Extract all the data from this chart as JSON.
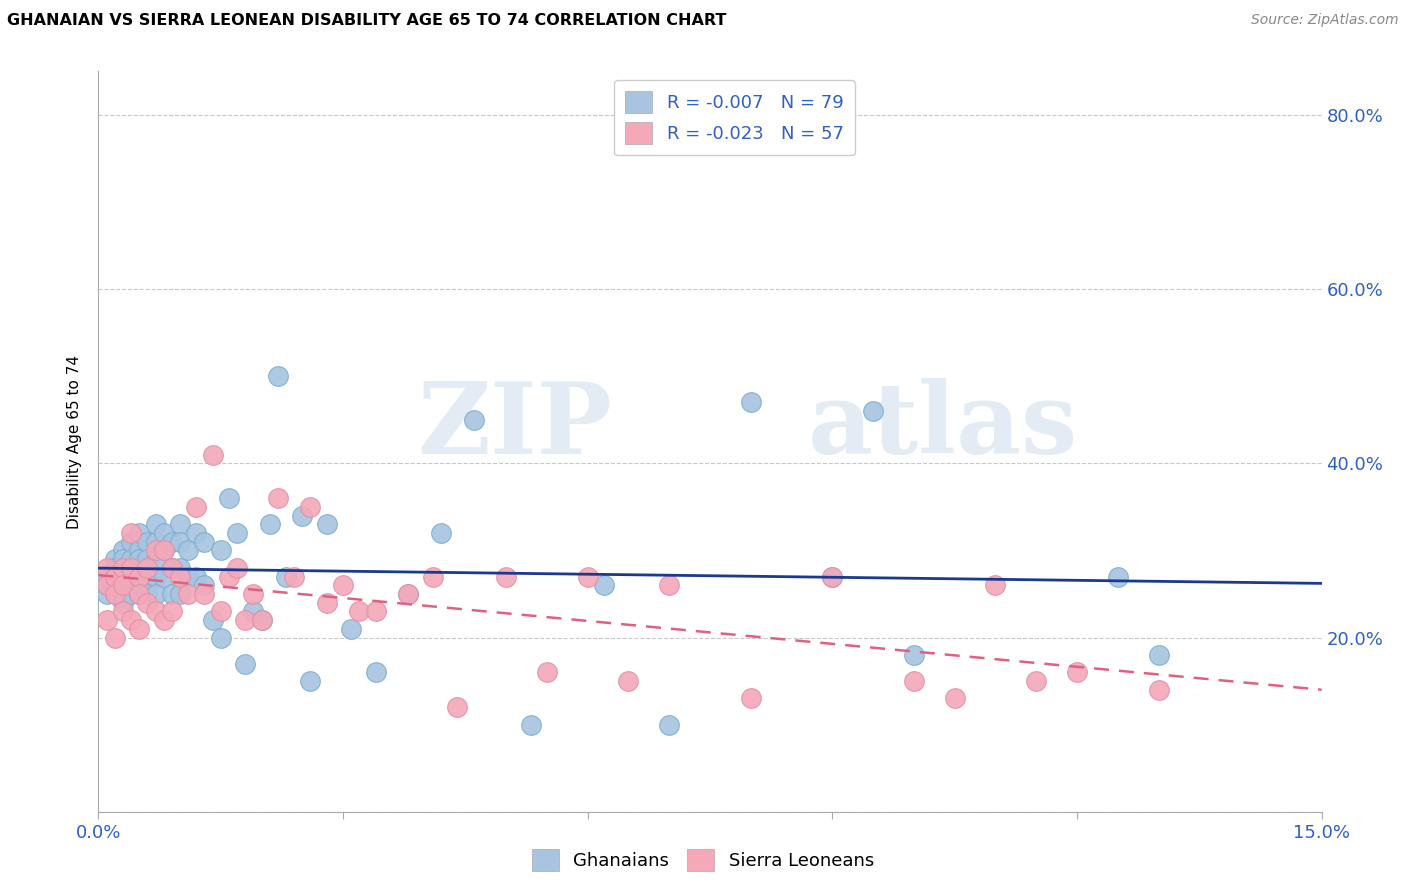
{
  "title": "GHANAIAN VS SIERRA LEONEAN DISABILITY AGE 65 TO 74 CORRELATION CHART",
  "source": "Source: ZipAtlas.com",
  "ylabel": "Disability Age 65 to 74",
  "x_min": 0.0,
  "x_max": 0.15,
  "y_min": 0.0,
  "y_max": 0.85,
  "x_ticks": [
    0.0,
    0.03,
    0.06,
    0.09,
    0.12,
    0.15
  ],
  "x_tick_labels": [
    "0.0%",
    "",
    "",
    "",
    "",
    "15.0%"
  ],
  "y_ticks": [
    0.0,
    0.2,
    0.4,
    0.6,
    0.8
  ],
  "y_tick_labels_right": [
    "",
    "20.0%",
    "40.0%",
    "60.0%",
    "80.0%"
  ],
  "ghanaian_color": "#a8c4e0",
  "sl_color": "#f4a8b8",
  "legend_label_1": "R = -0.007   N = 79",
  "legend_label_2": "R = -0.023   N = 57",
  "legend_bottom_1": "Ghanaians",
  "legend_bottom_2": "Sierra Leoneans",
  "watermark_zip": "ZIP",
  "watermark_atlas": "atlas",
  "ghanaian_x": [
    0.001,
    0.001,
    0.001,
    0.002,
    0.002,
    0.002,
    0.002,
    0.002,
    0.003,
    0.003,
    0.003,
    0.003,
    0.003,
    0.003,
    0.003,
    0.004,
    0.004,
    0.004,
    0.004,
    0.004,
    0.005,
    0.005,
    0.005,
    0.005,
    0.005,
    0.005,
    0.006,
    0.006,
    0.006,
    0.006,
    0.007,
    0.007,
    0.007,
    0.007,
    0.007,
    0.008,
    0.008,
    0.008,
    0.009,
    0.009,
    0.009,
    0.01,
    0.01,
    0.01,
    0.01,
    0.011,
    0.011,
    0.012,
    0.012,
    0.013,
    0.013,
    0.014,
    0.015,
    0.015,
    0.016,
    0.017,
    0.018,
    0.019,
    0.02,
    0.021,
    0.022,
    0.023,
    0.025,
    0.026,
    0.028,
    0.031,
    0.034,
    0.038,
    0.042,
    0.046,
    0.053,
    0.062,
    0.07,
    0.08,
    0.09,
    0.095,
    0.1,
    0.125,
    0.13
  ],
  "ghanaian_y": [
    0.27,
    0.26,
    0.25,
    0.29,
    0.28,
    0.27,
    0.26,
    0.25,
    0.3,
    0.29,
    0.28,
    0.27,
    0.26,
    0.25,
    0.24,
    0.31,
    0.29,
    0.27,
    0.26,
    0.25,
    0.32,
    0.3,
    0.29,
    0.27,
    0.26,
    0.25,
    0.31,
    0.29,
    0.27,
    0.25,
    0.33,
    0.31,
    0.29,
    0.27,
    0.25,
    0.32,
    0.3,
    0.27,
    0.31,
    0.28,
    0.25,
    0.33,
    0.31,
    0.28,
    0.25,
    0.3,
    0.27,
    0.32,
    0.27,
    0.31,
    0.26,
    0.22,
    0.3,
    0.2,
    0.36,
    0.32,
    0.17,
    0.23,
    0.22,
    0.33,
    0.5,
    0.27,
    0.34,
    0.15,
    0.33,
    0.21,
    0.16,
    0.25,
    0.32,
    0.45,
    0.1,
    0.26,
    0.1,
    0.47,
    0.27,
    0.46,
    0.18,
    0.27,
    0.18
  ],
  "sl_x": [
    0.001,
    0.001,
    0.001,
    0.002,
    0.002,
    0.002,
    0.003,
    0.003,
    0.003,
    0.004,
    0.004,
    0.004,
    0.005,
    0.005,
    0.005,
    0.006,
    0.006,
    0.007,
    0.007,
    0.008,
    0.008,
    0.009,
    0.009,
    0.01,
    0.011,
    0.012,
    0.013,
    0.014,
    0.015,
    0.016,
    0.017,
    0.018,
    0.019,
    0.02,
    0.022,
    0.024,
    0.026,
    0.028,
    0.03,
    0.032,
    0.034,
    0.038,
    0.041,
    0.044,
    0.05,
    0.055,
    0.06,
    0.065,
    0.07,
    0.08,
    0.09,
    0.1,
    0.105,
    0.11,
    0.115,
    0.12,
    0.13
  ],
  "sl_y": [
    0.28,
    0.26,
    0.22,
    0.27,
    0.25,
    0.2,
    0.28,
    0.26,
    0.23,
    0.32,
    0.28,
    0.22,
    0.27,
    0.25,
    0.21,
    0.28,
    0.24,
    0.3,
    0.23,
    0.3,
    0.22,
    0.28,
    0.23,
    0.27,
    0.25,
    0.35,
    0.25,
    0.41,
    0.23,
    0.27,
    0.28,
    0.22,
    0.25,
    0.22,
    0.36,
    0.27,
    0.35,
    0.24,
    0.26,
    0.23,
    0.23,
    0.25,
    0.27,
    0.12,
    0.27,
    0.16,
    0.27,
    0.15,
    0.26,
    0.13,
    0.27,
    0.15,
    0.13,
    0.26,
    0.15,
    0.16,
    0.14
  ],
  "grid_color": "#c8c8c8",
  "line_blue": "#1a3a8f",
  "line_pink": "#e06080",
  "title_fontsize": 11.5,
  "tick_fontsize": 13,
  "ylabel_fontsize": 11
}
